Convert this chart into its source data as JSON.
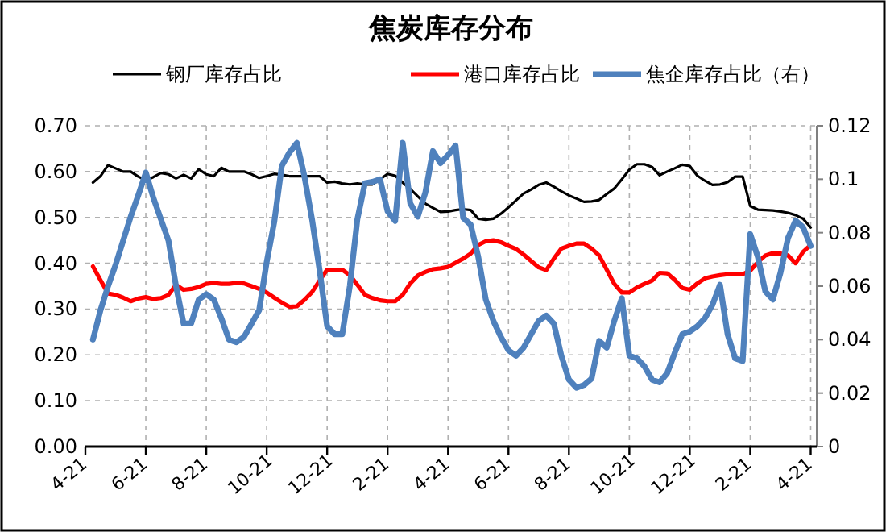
{
  "chart_data": {
    "type": "line",
    "title": "焦炭库存分布",
    "categories": [
      "4-21",
      null,
      null,
      null,
      null,
      null,
      null,
      null,
      "6-21",
      null,
      null,
      null,
      null,
      null,
      null,
      null,
      "8-21",
      null,
      null,
      null,
      null,
      null,
      null,
      null,
      "10-21",
      null,
      null,
      null,
      null,
      null,
      null,
      null,
      "12-21",
      null,
      null,
      null,
      null,
      null,
      null,
      null,
      "2-21",
      null,
      null,
      null,
      null,
      null,
      null,
      null,
      "4-21",
      null,
      null,
      null,
      null,
      null,
      null,
      null,
      "6-21",
      null,
      null,
      null,
      null,
      null,
      null,
      null,
      "8-21",
      null,
      null,
      null,
      null,
      null,
      null,
      null,
      "10-21",
      null,
      null,
      null,
      null,
      null,
      null,
      null,
      "12-21",
      null,
      null,
      null,
      null,
      null,
      null,
      null,
      "2-21",
      null,
      null,
      null,
      null,
      null,
      null,
      null,
      "4-21"
    ],
    "ylim": [
      0,
      0.7
    ],
    "yticks": [
      {
        "value": 0,
        "label": "0.00"
      },
      {
        "value": 0.1,
        "label": "0.10"
      },
      {
        "value": 0.2,
        "label": "0.20"
      },
      {
        "value": 0.3,
        "label": "0.30"
      },
      {
        "value": 0.4,
        "label": "0.40"
      },
      {
        "value": 0.5,
        "label": "0.50"
      },
      {
        "value": 0.6,
        "label": "0.60"
      },
      {
        "value": 0.7,
        "label": "0.70"
      }
    ],
    "y2lim": [
      0,
      0.12
    ],
    "y2ticks": [
      0,
      0.02,
      0.04,
      0.06,
      0.08,
      0.1,
      0.12
    ],
    "grid": true,
    "legend": "top",
    "line_style": "solid",
    "series": [
      {
        "name": "钢厂库存占比",
        "color": "#000000",
        "values": [
          null,
          0.576,
          0.59,
          0.614,
          0.607,
          0.6,
          0.6,
          0.589,
          0.581,
          0.588,
          0.597,
          0.594,
          0.585,
          0.593,
          0.585,
          0.605,
          0.594,
          0.59,
          0.608,
          0.6,
          0.6,
          0.6,
          0.594,
          0.586,
          0.59,
          0.595,
          0.593,
          0.59,
          0.59,
          0.59,
          0.59,
          0.59,
          0.576,
          0.578,
          0.574,
          0.572,
          0.574,
          0.572,
          0.572,
          0.583,
          0.595,
          0.591,
          0.576,
          0.562,
          0.546,
          0.53,
          0.521,
          0.512,
          0.513,
          0.516,
          0.518,
          0.516,
          0.497,
          0.495,
          0.497,
          0.508,
          0.522,
          0.537,
          0.552,
          0.561,
          0.571,
          0.576,
          0.567,
          0.557,
          0.548,
          0.541,
          0.534,
          0.535,
          0.538,
          0.551,
          0.563,
          0.583,
          0.604,
          0.616,
          0.616,
          0.61,
          0.592,
          0.6,
          0.607,
          0.615,
          0.612,
          0.591,
          0.58,
          0.571,
          0.572,
          0.577,
          0.589,
          0.589,
          0.525,
          0.517,
          0.516,
          0.515,
          0.513,
          0.51,
          0.505,
          0.497,
          0.478
        ]
      },
      {
        "name": "港口库存占比",
        "color": "#ff0000",
        "values": [
          null,
          0.393,
          0.363,
          0.334,
          0.331,
          0.325,
          0.317,
          0.323,
          0.326,
          0.322,
          0.324,
          0.331,
          0.353,
          0.342,
          0.344,
          0.348,
          0.355,
          0.357,
          0.355,
          0.355,
          0.357,
          0.356,
          0.35,
          0.344,
          0.336,
          0.325,
          0.314,
          0.305,
          0.306,
          0.32,
          0.337,
          0.362,
          0.386,
          0.386,
          0.386,
          0.374,
          0.353,
          0.331,
          0.324,
          0.319,
          0.317,
          0.317,
          0.331,
          0.356,
          0.373,
          0.381,
          0.387,
          0.389,
          0.392,
          0.401,
          0.41,
          0.421,
          0.44,
          0.448,
          0.45,
          0.446,
          0.438,
          0.431,
          0.419,
          0.405,
          0.391,
          0.385,
          0.41,
          0.432,
          0.438,
          0.443,
          0.443,
          0.432,
          0.417,
          0.386,
          0.355,
          0.336,
          0.336,
          0.347,
          0.355,
          0.362,
          0.379,
          0.378,
          0.364,
          0.346,
          0.342,
          0.356,
          0.367,
          0.371,
          0.374,
          0.376,
          0.376,
          0.376,
          0.384,
          0.402,
          0.417,
          0.422,
          0.421,
          0.417,
          0.4,
          0.425,
          0.44
        ]
      },
      {
        "name": "焦企库存占比（右）",
        "color": "#4f81bd",
        "axis": "y2",
        "values": [
          null,
          0.04,
          0.051,
          0.06,
          0.068,
          0.077,
          0.086,
          0.094,
          0.1025,
          0.093,
          0.085,
          0.077,
          0.06,
          0.046,
          0.046,
          0.055,
          0.057,
          0.055,
          0.048,
          0.04,
          0.039,
          0.041,
          0.046,
          0.051,
          0.069,
          0.084,
          0.105,
          0.11,
          0.1136,
          0.101,
          0.085,
          0.066,
          0.045,
          0.042,
          0.042,
          0.06,
          0.085,
          0.0985,
          0.099,
          0.1,
          0.088,
          0.0844,
          0.1136,
          0.091,
          0.086,
          0.095,
          0.1105,
          0.106,
          0.109,
          0.1126,
          0.0855,
          0.083,
          0.071,
          0.055,
          0.047,
          0.041,
          0.036,
          0.034,
          0.037,
          0.042,
          0.047,
          0.049,
          0.046,
          0.034,
          0.025,
          0.022,
          0.023,
          0.0254,
          0.0395,
          0.037,
          0.047,
          0.0555,
          0.034,
          0.033,
          0.03,
          0.025,
          0.024,
          0.0274,
          0.035,
          0.042,
          0.043,
          0.045,
          0.048,
          0.053,
          0.0605,
          0.042,
          0.033,
          0.032,
          0.0795,
          0.071,
          0.058,
          0.055,
          0.065,
          0.078,
          0.0845,
          0.082,
          0.075
        ]
      }
    ]
  }
}
